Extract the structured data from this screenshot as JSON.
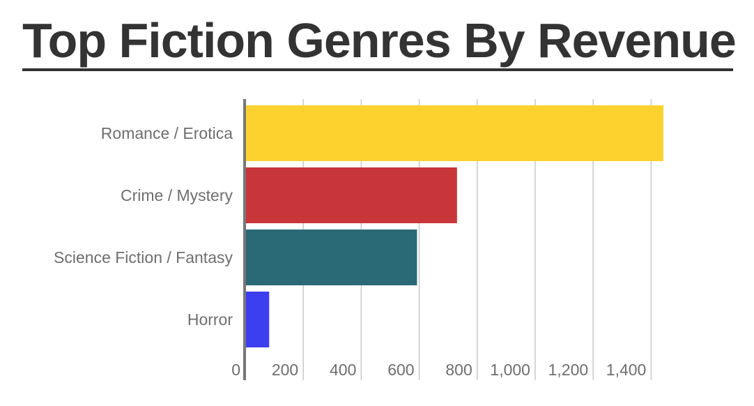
{
  "chart_data": {
    "type": "bar",
    "orientation": "horizontal",
    "title": "Top Fiction Genres By Revenue",
    "categories": [
      "Romance / Erotica",
      "Crime / Mystery",
      "Science Fiction / Fantasy",
      "Horror"
    ],
    "values": [
      1440,
      728,
      590,
      80
    ],
    "colors": [
      "#fdd22e",
      "#c93639",
      "#2a6976",
      "#3d3ef0"
    ],
    "xlim": [
      0,
      1440
    ],
    "x_ticks": [
      0,
      200,
      400,
      600,
      800,
      1000,
      1200,
      1400
    ],
    "x_tick_labels": [
      "0",
      "200",
      "400",
      "600",
      "800",
      "1,000",
      "1,200",
      "1,400"
    ],
    "xlabel": "",
    "ylabel": "",
    "grid": "vertical",
    "legend": "none"
  }
}
